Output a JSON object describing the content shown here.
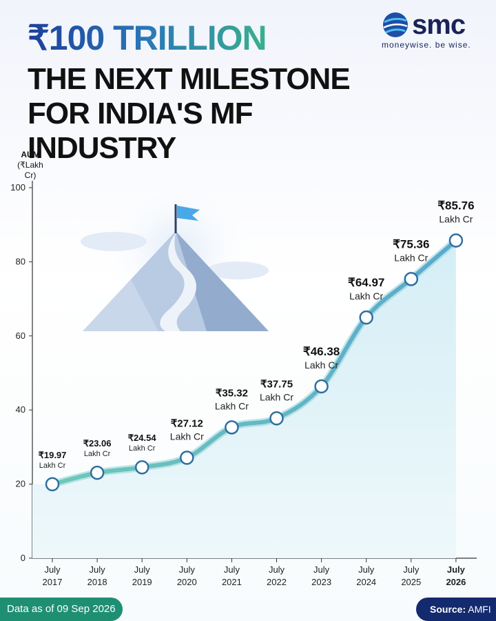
{
  "brand": {
    "name": "smc",
    "tagline": "moneywise. be wise."
  },
  "header": {
    "title": "₹100 TRILLION",
    "subtitle": "THE NEXT MILESTONE FOR INDIA'S MF INDUSTRY"
  },
  "footer": {
    "data_note": "Data as of 09 Sep 2026",
    "source_label": "Source:",
    "source_value": "AMFI"
  },
  "colors": {
    "line": "#5cb8c3",
    "area": "#dff2f7",
    "marker": "#2e6f9e",
    "green": "#1f8f74",
    "navy": "#142a6e"
  },
  "chart_data": {
    "type": "line",
    "ylabel": "AUM",
    "yunit": "(₹Lakh Cr)",
    "ylim": [
      0,
      100
    ],
    "yticks": [
      0,
      20,
      40,
      60,
      80,
      100
    ],
    "categories": [
      "July 2017",
      "July 2018",
      "July 2019",
      "July 2020",
      "July 2021",
      "July 2022",
      "July 2023",
      "July 2024",
      "July 2025",
      "July 2026"
    ],
    "category_lines": [
      [
        "July",
        "2017"
      ],
      [
        "July",
        "2018"
      ],
      [
        "July",
        "2019"
      ],
      [
        "July",
        "2020"
      ],
      [
        "July",
        "2021"
      ],
      [
        "July",
        "2022"
      ],
      [
        "July",
        "2023"
      ],
      [
        "July",
        "2024"
      ],
      [
        "July",
        "2025"
      ],
      [
        "July",
        "2026"
      ]
    ],
    "values": [
      19.97,
      23.06,
      24.54,
      27.12,
      35.32,
      37.75,
      46.38,
      64.97,
      75.36,
      85.76
    ],
    "value_labels": [
      "₹19.97",
      "₹23.06",
      "₹24.54",
      "₹27.12",
      "₹35.32",
      "₹37.75",
      "₹46.38",
      "₹64.97",
      "₹75.36",
      "₹85.76"
    ],
    "unit_label": "Lakh Cr",
    "grid": false
  }
}
